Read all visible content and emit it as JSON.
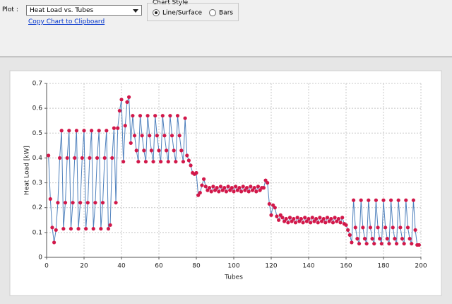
{
  "ui": {
    "plot_label": "Plot :",
    "plot_select": "Heat Load vs. Tubes",
    "copy_link": "Copy Chart to Clipboard",
    "chart_style": "Chart Style",
    "options": [
      "Line/Surface",
      "Bars"
    ],
    "selected": 0
  },
  "chart_data": {
    "type": "line",
    "x_label": "Tubes",
    "y_label": "Heat Load [kW]",
    "x": [
      1,
      2,
      3,
      4,
      5,
      6,
      7,
      8,
      9,
      10,
      11,
      12,
      13,
      14,
      15,
      16,
      17,
      18,
      19,
      20,
      21,
      22,
      23,
      24,
      25,
      26,
      27,
      28,
      29,
      30,
      31,
      32,
      33,
      34,
      35,
      36,
      37,
      38,
      39,
      40,
      41,
      42,
      43,
      44,
      45,
      46,
      47,
      48,
      49,
      50,
      51,
      52,
      53,
      54,
      55,
      56,
      57,
      58,
      59,
      60,
      61,
      62,
      63,
      64,
      65,
      66,
      67,
      68,
      69,
      70,
      71,
      72,
      73,
      74,
      75,
      76,
      77,
      78,
      79,
      80,
      81,
      82,
      83,
      84,
      85,
      86,
      87,
      88,
      89,
      90,
      91,
      92,
      93,
      94,
      95,
      96,
      97,
      98,
      99,
      100,
      101,
      102,
      103,
      104,
      105,
      106,
      107,
      108,
      109,
      110,
      111,
      112,
      113,
      114,
      115,
      116,
      117,
      118,
      119,
      120,
      121,
      122,
      123,
      124,
      125,
      126,
      127,
      128,
      129,
      130,
      131,
      132,
      133,
      134,
      135,
      136,
      137,
      138,
      139,
      140,
      141,
      142,
      143,
      144,
      145,
      146,
      147,
      148,
      149,
      150,
      151,
      152,
      153,
      154,
      155,
      156,
      157,
      158,
      159,
      160,
      161,
      162,
      163,
      164,
      165,
      166,
      167,
      168,
      169,
      170,
      171,
      172,
      173,
      174,
      175,
      176,
      177,
      178,
      179,
      180,
      181,
      182,
      183,
      184,
      185,
      186,
      187,
      188,
      189,
      190,
      191,
      192,
      193,
      194,
      195,
      196,
      197,
      198,
      199
    ],
    "series": [
      {
        "line_color": "#4f81bd",
        "color": "#d2184a",
        "values": [
          0.41,
          0.235,
          0.12,
          0.06,
          0.11,
          0.22,
          0.4,
          0.51,
          0.115,
          0.22,
          0.4,
          0.51,
          0.115,
          0.22,
          0.4,
          0.51,
          0.115,
          0.22,
          0.4,
          0.51,
          0.115,
          0.22,
          0.4,
          0.51,
          0.115,
          0.22,
          0.4,
          0.51,
          0.115,
          0.22,
          0.4,
          0.51,
          0.115,
          0.13,
          0.4,
          0.52,
          0.22,
          0.52,
          0.59,
          0.635,
          0.385,
          0.53,
          0.625,
          0.645,
          0.46,
          0.57,
          0.49,
          0.43,
          0.385,
          0.57,
          0.49,
          0.43,
          0.385,
          0.57,
          0.49,
          0.43,
          0.385,
          0.57,
          0.49,
          0.43,
          0.385,
          0.57,
          0.49,
          0.43,
          0.385,
          0.57,
          0.49,
          0.43,
          0.385,
          0.57,
          0.49,
          0.43,
          0.385,
          0.56,
          0.41,
          0.39,
          0.37,
          0.34,
          0.335,
          0.34,
          0.25,
          0.26,
          0.29,
          0.315,
          0.285,
          0.27,
          0.28,
          0.265,
          0.285,
          0.27,
          0.28,
          0.265,
          0.285,
          0.27,
          0.28,
          0.265,
          0.285,
          0.27,
          0.28,
          0.265,
          0.285,
          0.27,
          0.28,
          0.265,
          0.285,
          0.27,
          0.28,
          0.265,
          0.285,
          0.27,
          0.28,
          0.265,
          0.285,
          0.27,
          0.28,
          0.28,
          0.31,
          0.3,
          0.215,
          0.17,
          0.21,
          0.2,
          0.165,
          0.15,
          0.17,
          0.16,
          0.145,
          0.155,
          0.14,
          0.16,
          0.145,
          0.155,
          0.14,
          0.16,
          0.145,
          0.155,
          0.14,
          0.16,
          0.145,
          0.155,
          0.14,
          0.16,
          0.145,
          0.155,
          0.14,
          0.16,
          0.145,
          0.155,
          0.14,
          0.16,
          0.145,
          0.155,
          0.14,
          0.16,
          0.145,
          0.155,
          0.14,
          0.16,
          0.135,
          0.13,
          0.11,
          0.09,
          0.06,
          0.23,
          0.12,
          0.075,
          0.055,
          0.23,
          0.12,
          0.075,
          0.055,
          0.23,
          0.12,
          0.075,
          0.055,
          0.23,
          0.12,
          0.075,
          0.055,
          0.23,
          0.12,
          0.075,
          0.055,
          0.23,
          0.12,
          0.075,
          0.055,
          0.23,
          0.12,
          0.075,
          0.055,
          0.23,
          0.12,
          0.075,
          0.055,
          0.23,
          0.11,
          0.05,
          0.05
        ]
      }
    ],
    "xlim": [
      0,
      200
    ],
    "xticks": [
      0,
      20,
      40,
      60,
      80,
      100,
      120,
      140,
      160,
      180,
      200
    ],
    "ylim": [
      0,
      0.7
    ],
    "yticks": [
      0,
      0.1,
      0.2,
      0.3,
      0.4,
      0.5,
      0.6,
      0.7
    ],
    "grid": true
  }
}
